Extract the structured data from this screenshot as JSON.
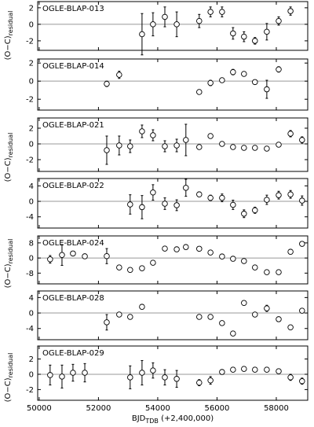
{
  "chart_data": [
    {
      "type": "scatter",
      "title": "OGLE-BLAP-013",
      "xlim": [
        49950,
        59060
      ],
      "xticks": [
        50000,
        52000,
        54000,
        56000,
        58000
      ],
      "ylim": [
        -3.15,
        2.75
      ],
      "yticks": [
        2,
        0,
        -2
      ],
      "hline": 0,
      "x": [
        53470,
        53840,
        54240,
        54640,
        55400,
        55780,
        56170,
        56540,
        56910,
        57280,
        57680,
        58080,
        58480
      ],
      "values": [
        -1.2,
        0.0,
        0.9,
        0.0,
        0.4,
        1.5,
        1.5,
        -1.1,
        -1.5,
        -2.0,
        -0.9,
        0.4,
        1.6
      ],
      "errors": [
        2.5,
        1.4,
        1.2,
        1.5,
        0.8,
        0.6,
        0.6,
        0.7,
        0.6,
        0.4,
        1.0,
        0.5,
        0.5
      ]
    },
    {
      "type": "scatter",
      "title": "OGLE-BLAP-014",
      "xlim": [
        49950,
        59060
      ],
      "xticks": [
        50000,
        52000,
        54000,
        56000,
        58000
      ],
      "ylim": [
        -3.2,
        2.45
      ],
      "yticks": [
        2,
        0,
        -2
      ],
      "hline": 0,
      "x": [
        52280,
        52700,
        55400,
        55780,
        56170,
        56540,
        56910,
        57280,
        57680,
        58080
      ],
      "values": [
        -0.3,
        0.7,
        -1.2,
        -0.2,
        0.1,
        1.0,
        0.8,
        -0.1,
        -0.9,
        1.3
      ],
      "errors": [
        0.3,
        0.4,
        0.2,
        0.3,
        0.2,
        0.3,
        0.2,
        0.2,
        1.0,
        0.3
      ]
    },
    {
      "type": "scatter",
      "title": "OGLE-BLAP-021",
      "xlim": [
        49950,
        59060
      ],
      "xticks": [
        50000,
        52000,
        54000,
        56000,
        58000
      ],
      "ylim": [
        -3.5,
        3.3
      ],
      "yticks": [
        2,
        0,
        -2
      ],
      "hline": 0,
      "x": [
        52280,
        52700,
        53070,
        53470,
        53840,
        54240,
        54640,
        54950,
        55400,
        55780,
        56170,
        56540,
        56910,
        57280,
        57680,
        58080,
        58480,
        58870
      ],
      "values": [
        -0.8,
        -0.2,
        -0.3,
        1.6,
        1.1,
        -0.3,
        -0.2,
        0.5,
        -0.4,
        1.0,
        0.0,
        -0.4,
        -0.5,
        -0.5,
        -0.6,
        -0.1,
        1.3,
        0.5
      ],
      "errors": [
        1.8,
        1.2,
        0.8,
        0.8,
        0.7,
        0.7,
        0.8,
        2.0,
        0.3,
        0.3,
        0.2,
        0.2,
        0.2,
        0.2,
        0.3,
        0.3,
        0.4,
        0.4
      ]
    },
    {
      "type": "scatter",
      "title": "OGLE-BLAP-022",
      "xlim": [
        49950,
        59060
      ],
      "xticks": [
        50000,
        52000,
        54000,
        56000,
        58000
      ],
      "ylim": [
        -6.9,
        5.9
      ],
      "yticks": [
        4,
        0,
        -4
      ],
      "hline": 0,
      "x": [
        53070,
        53470,
        53840,
        54240,
        54640,
        54950,
        55400,
        55780,
        56170,
        56540,
        56910,
        57280,
        57680,
        58080,
        58480,
        58870
      ],
      "values": [
        -0.8,
        -1.5,
        2.3,
        -0.6,
        -1.0,
        3.5,
        1.8,
        0.9,
        0.9,
        -0.9,
        -3.2,
        -2.3,
        0.4,
        1.6,
        1.8,
        0.2
      ],
      "errors": [
        2.5,
        3.0,
        2.0,
        1.5,
        1.4,
        2.2,
        0.6,
        0.7,
        1.0,
        1.2,
        1.0,
        0.8,
        1.2,
        1.0,
        1.0,
        1.2
      ]
    },
    {
      "type": "scatter",
      "title": "OGLE-BLAP-024",
      "xlim": [
        49950,
        59060
      ],
      "xticks": [
        50000,
        52000,
        54000,
        56000,
        58000
      ],
      "ylim": [
        -13.7,
        11.7
      ],
      "yticks": [
        8,
        0,
        -8
      ],
      "hline": 0,
      "x": [
        50370,
        50770,
        51140,
        51540,
        52280,
        52700,
        53070,
        53470,
        53840,
        54240,
        54640,
        54950,
        55400,
        55780,
        56170,
        56540,
        56910,
        57280,
        57680,
        58080,
        58480,
        58870
      ],
      "values": [
        -0.7,
        1.6,
        2.4,
        0.9,
        1.0,
        -5.0,
        -6.3,
        -5.4,
        -2.5,
        5.0,
        4.6,
        5.8,
        4.9,
        2.9,
        0.8,
        -0.4,
        -1.6,
        -5.0,
        -7.5,
        -7.5,
        3.3,
        7.5
      ],
      "errors": [
        2.0,
        5.5,
        1.2,
        1.2,
        4.0,
        0.8,
        0.8,
        1.0,
        0.6,
        0.6,
        0.6,
        0.8,
        0.5,
        0.5,
        0.5,
        0.5,
        0.5,
        0.5,
        0.5,
        0.5,
        0.5,
        0.5
      ]
    },
    {
      "type": "scatter",
      "title": "OGLE-BLAP-028",
      "xlim": [
        49950,
        59060
      ],
      "xticks": [
        50000,
        52000,
        54000,
        56000,
        58000
      ],
      "ylim": [
        -6.9,
        5.7
      ],
      "yticks": [
        4,
        0,
        -4
      ],
      "hline": 0,
      "x": [
        52280,
        52700,
        53070,
        53470,
        55400,
        55780,
        56170,
        56540,
        56910,
        57280,
        57680,
        58080,
        58480,
        58870
      ],
      "values": [
        -2.4,
        -0.4,
        -1.0,
        1.6,
        -1.0,
        -1.0,
        -2.6,
        -5.3,
        2.6,
        -0.4,
        1.2,
        -1.6,
        -3.7,
        0.6
      ],
      "errors": [
        2.0,
        0.5,
        0.4,
        0.5,
        0.4,
        0.4,
        0.4,
        0.5,
        0.5,
        0.4,
        0.8,
        0.5,
        0.5,
        0.4
      ]
    },
    {
      "type": "scatter",
      "title": "OGLE-BLAP-029",
      "xlim": [
        49950,
        59060
      ],
      "xticks": [
        50000,
        52000,
        54000,
        56000,
        58000
      ],
      "ylim": [
        -3.4,
        3.7
      ],
      "yticks": [
        2,
        0,
        -2
      ],
      "hline": 0,
      "x": [
        50370,
        50770,
        51140,
        51540,
        53070,
        53470,
        53840,
        54240,
        54640,
        55400,
        55780,
        56170,
        56540,
        56910,
        57280,
        57680,
        58080,
        58480,
        58870
      ],
      "values": [
        -0.1,
        -0.3,
        0.2,
        0.2,
        -0.4,
        0.2,
        0.5,
        -0.4,
        -0.6,
        -1.1,
        -0.8,
        0.3,
        0.6,
        0.7,
        0.6,
        0.6,
        0.4,
        -0.4,
        -0.9
      ],
      "errors": [
        1.3,
        1.5,
        1.1,
        1.2,
        1.5,
        1.6,
        1.0,
        1.0,
        1.1,
        0.4,
        0.5,
        0.3,
        0.3,
        0.3,
        0.3,
        0.3,
        0.3,
        0.4,
        0.4
      ]
    }
  ],
  "axes": {
    "ylabel": "(O−C)",
    "ylabel_sub": "residual",
    "xlabel": "BJD",
    "xlabel_sub": "TDB",
    "xlabel_rest": " (+2,400,000)"
  }
}
